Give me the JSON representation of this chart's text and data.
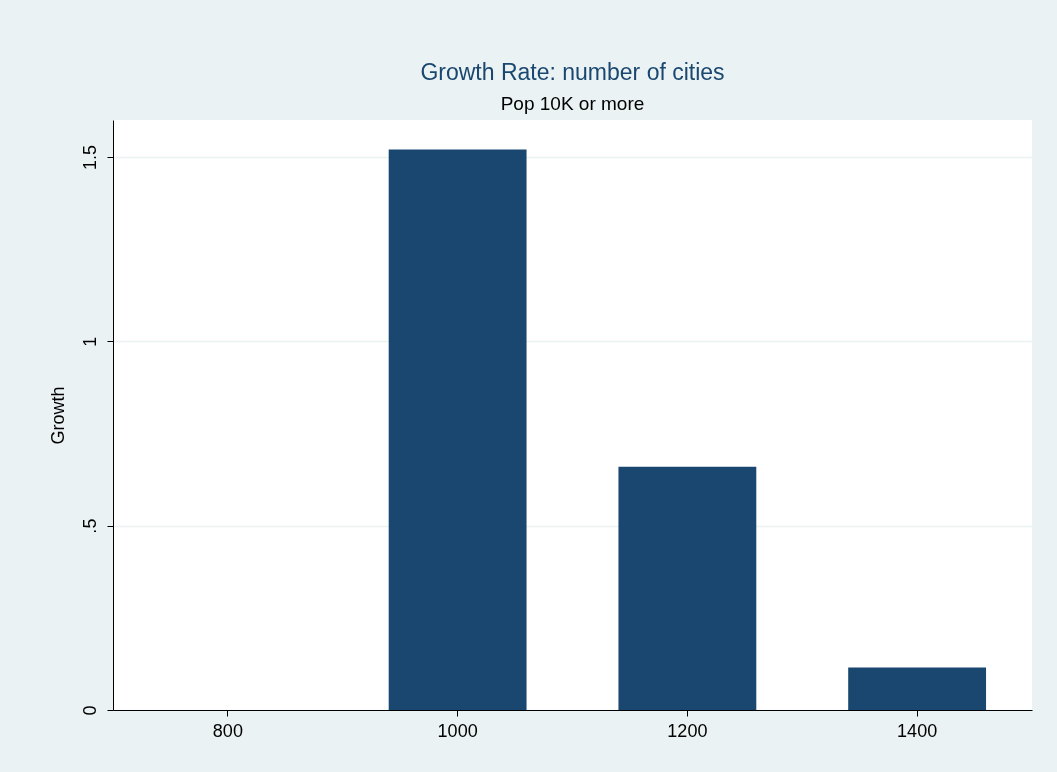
{
  "chart_data": {
    "type": "bar",
    "title": "Growth Rate: number of cities",
    "subtitle": "Pop 10K  or more",
    "ylabel": "Growth",
    "categories": [
      "800",
      "1000",
      "1200",
      "1400"
    ],
    "values": [
      null,
      1.52,
      0.66,
      0.115
    ],
    "color": "#1a476f",
    "ylim": [
      0,
      1.6
    ],
    "yticks": [
      0,
      {
        "value": 0.5,
        "label": ".5"
      },
      1,
      1.5
    ],
    "grid": "y"
  }
}
